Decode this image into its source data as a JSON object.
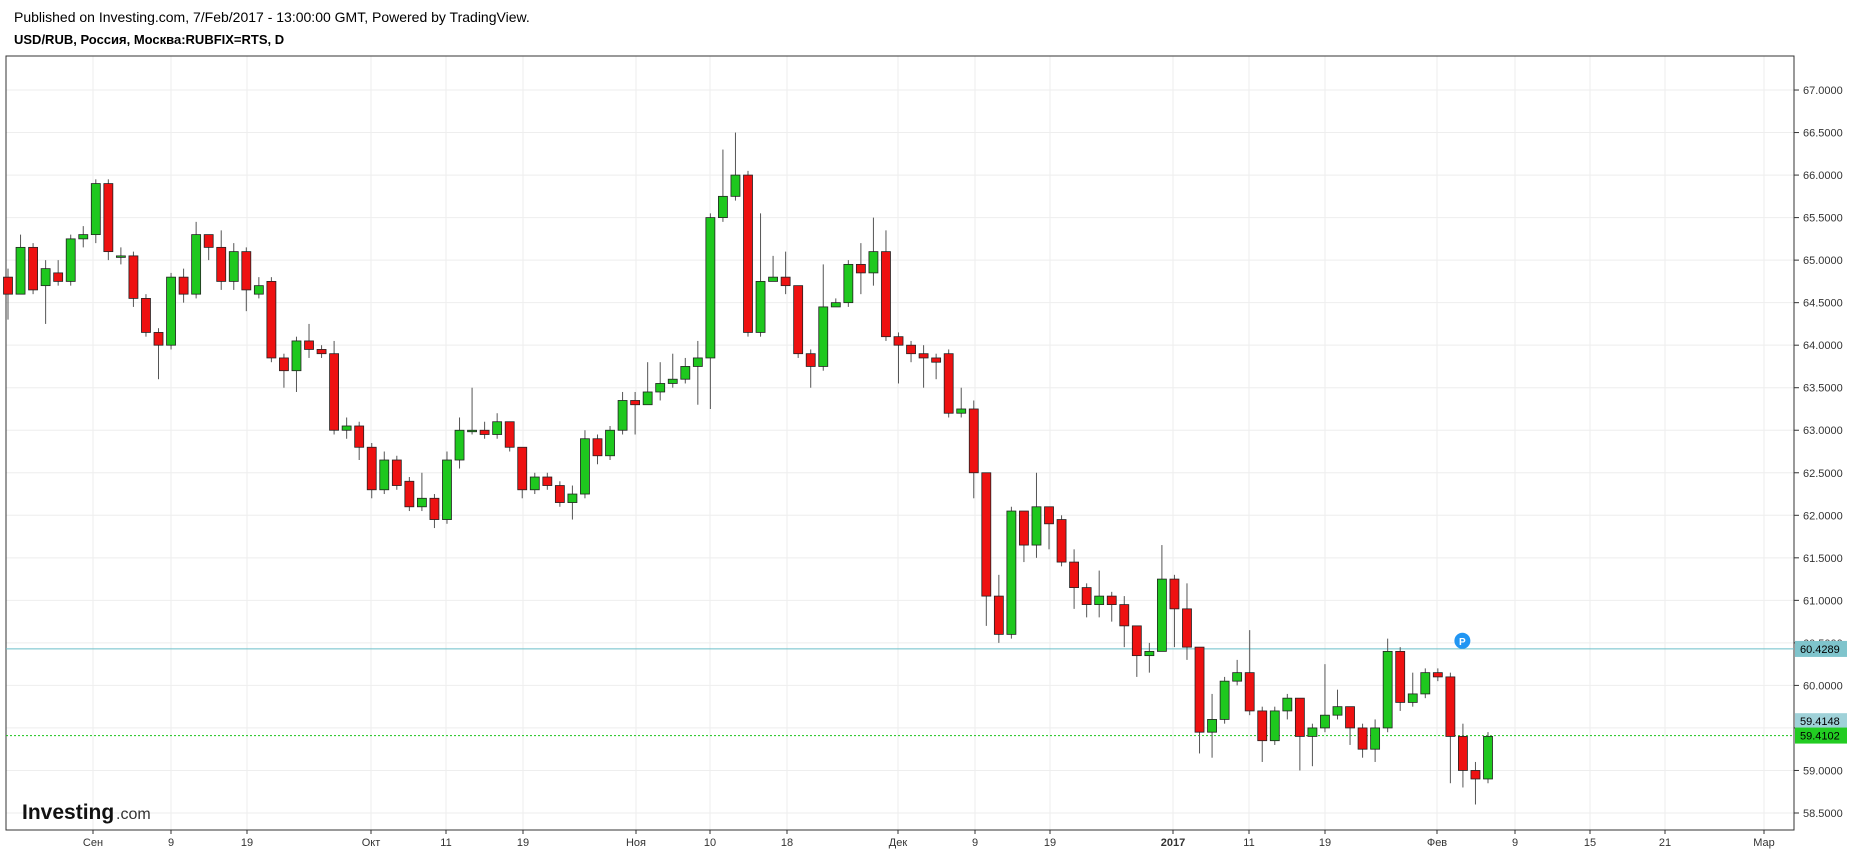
{
  "header": {
    "published": "Published on Investing.com, 7/Feb/2017 - 13:00:00 GMT, Powered by TradingView.",
    "symbol": "USD/RUB, Россия, Москва:RUBFIX=RTS, D"
  },
  "logo": {
    "brand": "Investing",
    "suffix": ".com"
  },
  "colors": {
    "up": "#1ec81e",
    "down": "#ee1111",
    "wick": "#555555",
    "grid": "#eeeeee",
    "hline_teal": "#6cbfc9",
    "hline_green": "#19c419",
    "marker": "#2196f3"
  },
  "chart_data": {
    "type": "candlestick",
    "ylim": [
      58.3,
      67.4
    ],
    "y_ticks": [
      "58.5000",
      "59.0000",
      "59.5000",
      "60.0000",
      "60.5000",
      "61.0000",
      "61.5000",
      "62.0000",
      "62.5000",
      "63.0000",
      "63.5000",
      "64.0000",
      "64.5000",
      "65.0000",
      "65.5000",
      "66.0000",
      "66.5000",
      "67.0000"
    ],
    "x_labels": [
      "Сен",
      "9",
      "19",
      "Окт",
      "11",
      "19",
      "Ноя",
      "10",
      "18",
      "Дек",
      "9",
      "19",
      "2017",
      "11",
      "19",
      "Фев",
      "9",
      "15",
      "21",
      "Мар"
    ],
    "price_lines": [
      {
        "value": 60.4289,
        "label": "60.4289",
        "style": "teal"
      },
      {
        "value": 59.4148,
        "label": "59.4148",
        "style": "grey"
      },
      {
        "value": 59.4102,
        "label": "59.4102",
        "style": "green"
      }
    ],
    "marker": {
      "label": "P",
      "value": 60.36
    },
    "candles": [
      [
        64.8,
        64.6,
        64.9,
        64.3
      ],
      [
        64.6,
        65.15,
        65.3,
        64.6
      ],
      [
        65.15,
        64.65,
        65.2,
        64.6
      ],
      [
        64.7,
        64.9,
        65.0,
        64.25
      ],
      [
        64.85,
        64.75,
        65.0,
        64.7
      ],
      [
        64.75,
        65.25,
        65.3,
        64.7
      ],
      [
        65.25,
        65.3,
        65.4,
        65.15
      ],
      [
        65.3,
        65.9,
        65.95,
        65.2
      ],
      [
        65.9,
        65.1,
        65.95,
        65.0
      ],
      [
        65.05,
        65.05,
        65.15,
        64.95
      ],
      [
        65.05,
        64.55,
        65.1,
        64.45
      ],
      [
        64.55,
        64.15,
        64.6,
        64.1
      ],
      [
        64.15,
        64.0,
        64.2,
        63.6
      ],
      [
        64.0,
        64.8,
        64.85,
        63.95
      ],
      [
        64.8,
        64.6,
        64.9,
        64.5
      ],
      [
        64.6,
        65.3,
        65.45,
        64.55
      ],
      [
        65.3,
        65.15,
        65.3,
        65.0
      ],
      [
        65.15,
        64.75,
        65.35,
        64.65
      ],
      [
        64.75,
        65.1,
        65.2,
        64.65
      ],
      [
        65.1,
        64.65,
        65.15,
        64.4
      ],
      [
        64.6,
        64.7,
        64.8,
        64.55
      ],
      [
        64.75,
        63.85,
        64.8,
        63.8
      ],
      [
        63.85,
        63.7,
        63.9,
        63.5
      ],
      [
        63.7,
        64.05,
        64.1,
        63.45
      ],
      [
        64.05,
        63.95,
        64.25,
        63.85
      ],
      [
        63.95,
        63.9,
        64.0,
        63.85
      ],
      [
        63.9,
        63.0,
        64.05,
        62.95
      ],
      [
        63.0,
        63.05,
        63.15,
        62.9
      ],
      [
        63.05,
        62.8,
        63.1,
        62.65
      ],
      [
        62.8,
        62.3,
        62.85,
        62.2
      ],
      [
        62.3,
        62.65,
        62.75,
        62.25
      ],
      [
        62.65,
        62.35,
        62.7,
        62.3
      ],
      [
        62.4,
        62.1,
        62.45,
        62.05
      ],
      [
        62.1,
        62.2,
        62.5,
        62.05
      ],
      [
        62.2,
        61.95,
        62.25,
        61.85
      ],
      [
        61.95,
        62.65,
        62.75,
        61.9
      ],
      [
        62.65,
        63.0,
        63.15,
        62.55
      ],
      [
        63.0,
        63.0,
        63.5,
        62.95
      ],
      [
        63.0,
        62.95,
        63.1,
        62.9
      ],
      [
        62.95,
        63.1,
        63.2,
        62.9
      ],
      [
        63.1,
        62.8,
        63.1,
        62.75
      ],
      [
        62.8,
        62.3,
        62.8,
        62.2
      ],
      [
        62.3,
        62.45,
        62.5,
        62.25
      ],
      [
        62.45,
        62.35,
        62.5,
        62.3
      ],
      [
        62.35,
        62.15,
        62.4,
        62.1
      ],
      [
        62.15,
        62.25,
        62.35,
        61.95
      ],
      [
        62.25,
        62.9,
        63.0,
        62.2
      ],
      [
        62.9,
        62.7,
        62.95,
        62.6
      ],
      [
        62.7,
        63.0,
        63.05,
        62.65
      ],
      [
        63.0,
        63.35,
        63.45,
        62.95
      ],
      [
        63.35,
        63.3,
        63.45,
        62.95
      ],
      [
        63.3,
        63.45,
        63.8,
        63.3
      ],
      [
        63.45,
        63.55,
        63.8,
        63.35
      ],
      [
        63.55,
        63.6,
        63.9,
        63.5
      ],
      [
        63.6,
        63.75,
        63.85,
        63.55
      ],
      [
        63.75,
        63.85,
        64.05,
        63.3
      ],
      [
        63.85,
        65.5,
        65.55,
        63.25
      ],
      [
        65.5,
        65.75,
        66.3,
        65.45
      ],
      [
        65.75,
        66.0,
        66.5,
        65.7
      ],
      [
        66.0,
        64.15,
        66.05,
        64.1
      ],
      [
        64.15,
        64.75,
        65.55,
        64.1
      ],
      [
        64.75,
        64.8,
        65.05,
        64.75
      ],
      [
        64.8,
        64.7,
        65.1,
        64.6
      ],
      [
        64.7,
        63.9,
        64.7,
        63.85
      ],
      [
        63.9,
        63.75,
        63.95,
        63.5
      ],
      [
        63.75,
        64.45,
        64.95,
        63.7
      ],
      [
        64.45,
        64.5,
        64.55,
        64.45
      ],
      [
        64.5,
        64.95,
        65.0,
        64.45
      ],
      [
        64.95,
        64.85,
        65.2,
        64.6
      ],
      [
        64.85,
        65.1,
        65.5,
        64.7
      ],
      [
        65.1,
        64.1,
        65.35,
        64.05
      ],
      [
        64.1,
        64.0,
        64.15,
        63.55
      ],
      [
        64.0,
        63.9,
        64.05,
        63.8
      ],
      [
        63.9,
        63.85,
        64.0,
        63.5
      ],
      [
        63.85,
        63.8,
        63.9,
        63.6
      ],
      [
        63.9,
        63.2,
        63.95,
        63.15
      ],
      [
        63.2,
        63.25,
        63.5,
        63.15
      ],
      [
        63.25,
        62.5,
        63.35,
        62.2
      ],
      [
        62.5,
        61.05,
        62.5,
        60.7
      ],
      [
        61.05,
        60.6,
        61.3,
        60.5
      ],
      [
        60.6,
        62.05,
        62.1,
        60.55
      ],
      [
        62.05,
        61.65,
        62.05,
        61.45
      ],
      [
        61.65,
        62.1,
        62.5,
        61.5
      ],
      [
        62.1,
        61.9,
        62.1,
        61.6
      ],
      [
        61.95,
        61.45,
        62.0,
        61.4
      ],
      [
        61.45,
        61.15,
        61.6,
        60.9
      ],
      [
        61.15,
        60.95,
        61.2,
        60.8
      ],
      [
        60.95,
        61.05,
        61.35,
        60.8
      ],
      [
        61.05,
        60.95,
        61.1,
        60.75
      ],
      [
        60.95,
        60.7,
        61.05,
        60.45
      ],
      [
        60.7,
        60.35,
        60.7,
        60.1
      ],
      [
        60.35,
        60.4,
        60.5,
        60.15
      ],
      [
        60.4,
        61.25,
        61.65,
        60.4
      ],
      [
        61.25,
        60.9,
        61.3,
        60.45
      ],
      [
        60.9,
        60.45,
        61.2,
        60.3
      ],
      [
        60.45,
        59.45,
        60.45,
        59.2
      ],
      [
        59.45,
        59.6,
        59.9,
        59.15
      ],
      [
        59.6,
        60.05,
        60.1,
        59.55
      ],
      [
        60.05,
        60.15,
        60.3,
        60.0
      ],
      [
        60.15,
        59.7,
        60.65,
        59.65
      ],
      [
        59.7,
        59.35,
        59.75,
        59.1
      ],
      [
        59.35,
        59.7,
        59.75,
        59.3
      ],
      [
        59.7,
        59.85,
        59.9,
        59.6
      ],
      [
        59.85,
        59.4,
        59.85,
        59.0
      ],
      [
        59.4,
        59.5,
        59.55,
        59.05
      ],
      [
        59.5,
        59.65,
        60.25,
        59.45
      ],
      [
        59.65,
        59.75,
        59.95,
        59.6
      ],
      [
        59.75,
        59.5,
        59.75,
        59.3
      ],
      [
        59.5,
        59.25,
        59.55,
        59.15
      ],
      [
        59.25,
        59.5,
        59.6,
        59.1
      ],
      [
        59.5,
        60.4,
        60.55,
        59.45
      ],
      [
        60.4,
        59.8,
        60.45,
        59.7
      ],
      [
        59.8,
        59.9,
        60.15,
        59.75
      ],
      [
        59.9,
        60.15,
        60.2,
        59.85
      ],
      [
        60.15,
        60.1,
        60.2,
        60.05
      ],
      [
        60.1,
        59.4,
        60.15,
        58.85
      ],
      [
        59.4,
        59.0,
        59.55,
        58.8
      ],
      [
        59.0,
        58.9,
        59.1,
        58.6
      ],
      [
        58.9,
        59.4,
        59.45,
        58.85
      ]
    ]
  }
}
